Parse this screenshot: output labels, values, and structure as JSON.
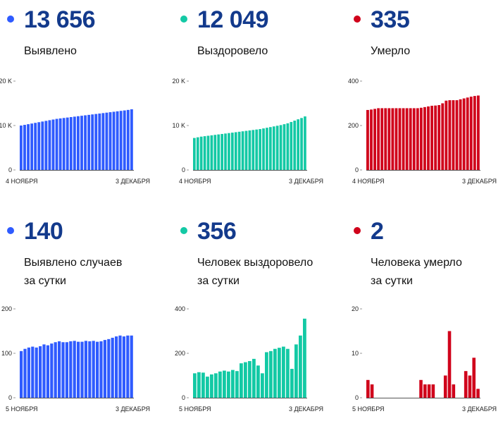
{
  "panels": [
    {
      "id": "p1",
      "color": "#2f5bff",
      "value": "13 656",
      "label": "Выявлено",
      "chart_data": {
        "type": "bar",
        "title": "",
        "xlabel": "",
        "ylabel": "",
        "ylim": [
          0,
          20000
        ],
        "yticks": [
          0,
          10000,
          20000
        ],
        "ytick_labels": [
          "0",
          "10 K",
          "20 K"
        ],
        "x_start_label": "4 НОЯБРЯ",
        "x_end_label": "3 ДЕКАБРЯ",
        "values": [
          10000,
          10150,
          10300,
          10450,
          10600,
          10750,
          10900,
          11050,
          11200,
          11350,
          11500,
          11600,
          11700,
          11800,
          11900,
          12000,
          12100,
          12200,
          12300,
          12400,
          12500,
          12600,
          12700,
          12800,
          12900,
          13000,
          13100,
          13200,
          13300,
          13400,
          13516,
          13656
        ]
      }
    },
    {
      "id": "p2",
      "color": "#13c9a5",
      "value": "12 049",
      "label": "Выздоровело",
      "chart_data": {
        "type": "bar",
        "title": "",
        "xlabel": "",
        "ylabel": "",
        "ylim": [
          0,
          20000
        ],
        "yticks": [
          0,
          10000,
          20000
        ],
        "ytick_labels": [
          "0",
          "10 K",
          "20 K"
        ],
        "x_start_label": "4 НОЯБРЯ",
        "x_end_label": "3 ДЕКАБРЯ",
        "values": [
          7200,
          7350,
          7500,
          7600,
          7700,
          7800,
          7900,
          8000,
          8100,
          8200,
          8300,
          8400,
          8500,
          8600,
          8700,
          8800,
          8900,
          9000,
          9100,
          9200,
          9350,
          9500,
          9650,
          9800,
          9950,
          10100,
          10300,
          10500,
          10800,
          11100,
          11400,
          11693,
          12049
        ]
      }
    },
    {
      "id": "p3",
      "color": "#d0021b",
      "value": "335",
      "label": "Умерло",
      "chart_data": {
        "type": "bar",
        "title": "",
        "xlabel": "",
        "ylabel": "",
        "ylim": [
          0,
          400
        ],
        "yticks": [
          0,
          200,
          400
        ],
        "ytick_labels": [
          "0",
          "200",
          "400"
        ],
        "x_start_label": "4 НОЯБРЯ",
        "x_end_label": "3 ДЕКАБРЯ",
        "values": [
          270,
          272,
          275,
          278,
          278,
          278,
          278,
          278,
          278,
          278,
          278,
          278,
          278,
          278,
          278,
          280,
          283,
          286,
          289,
          290,
          292,
          300,
          312,
          314,
          314,
          314,
          318,
          322,
          326,
          330,
          333,
          335
        ]
      }
    },
    {
      "id": "p4",
      "color": "#2f5bff",
      "value": "140",
      "label": "Выявлено случаев\nза сутки",
      "chart_data": {
        "type": "bar",
        "title": "",
        "xlabel": "",
        "ylabel": "",
        "ylim": [
          0,
          200
        ],
        "yticks": [
          0,
          100,
          200
        ],
        "ytick_labels": [
          "0",
          "100",
          "200"
        ],
        "x_start_label": "5 НОЯБРЯ",
        "x_end_label": "3 ДЕКАБРЯ",
        "values": [
          105,
          110,
          113,
          115,
          113,
          116,
          120,
          118,
          122,
          125,
          127,
          125,
          125,
          127,
          128,
          126,
          126,
          128,
          127,
          128,
          126,
          127,
          130,
          132,
          135,
          138,
          140,
          138,
          140,
          140
        ]
      }
    },
    {
      "id": "p5",
      "color": "#13c9a5",
      "value": "356",
      "label": "Человек выздоровело\nза сутки",
      "chart_data": {
        "type": "bar",
        "title": "",
        "xlabel": "",
        "ylabel": "",
        "ylim": [
          0,
          400
        ],
        "yticks": [
          0,
          200,
          400
        ],
        "ytick_labels": [
          "0",
          "200",
          "400"
        ],
        "x_start_label": "5 НОЯБРЯ",
        "x_end_label": "3 ДЕКАБРЯ",
        "values": [
          110,
          115,
          113,
          95,
          105,
          110,
          118,
          122,
          118,
          125,
          120,
          155,
          160,
          165,
          175,
          145,
          110,
          205,
          210,
          220,
          225,
          230,
          220,
          130,
          240,
          280,
          356
        ]
      }
    },
    {
      "id": "p6",
      "color": "#d0021b",
      "value": "2",
      "label": "Человека умерло\nза сутки",
      "chart_data": {
        "type": "bar",
        "title": "",
        "xlabel": "",
        "ylabel": "",
        "ylim": [
          0,
          20
        ],
        "yticks": [
          0,
          10,
          20
        ],
        "ytick_labels": [
          "0",
          "10",
          "20"
        ],
        "x_start_label": "5 НОЯБРЯ",
        "x_end_label": "3 ДЕКАБРЯ",
        "values": [
          4,
          3,
          0,
          0,
          0,
          0,
          0,
          0,
          0,
          0,
          0,
          0,
          0,
          4,
          3,
          3,
          3,
          0,
          0,
          5,
          15,
          3,
          0,
          0,
          6,
          5,
          9,
          2
        ]
      }
    }
  ]
}
